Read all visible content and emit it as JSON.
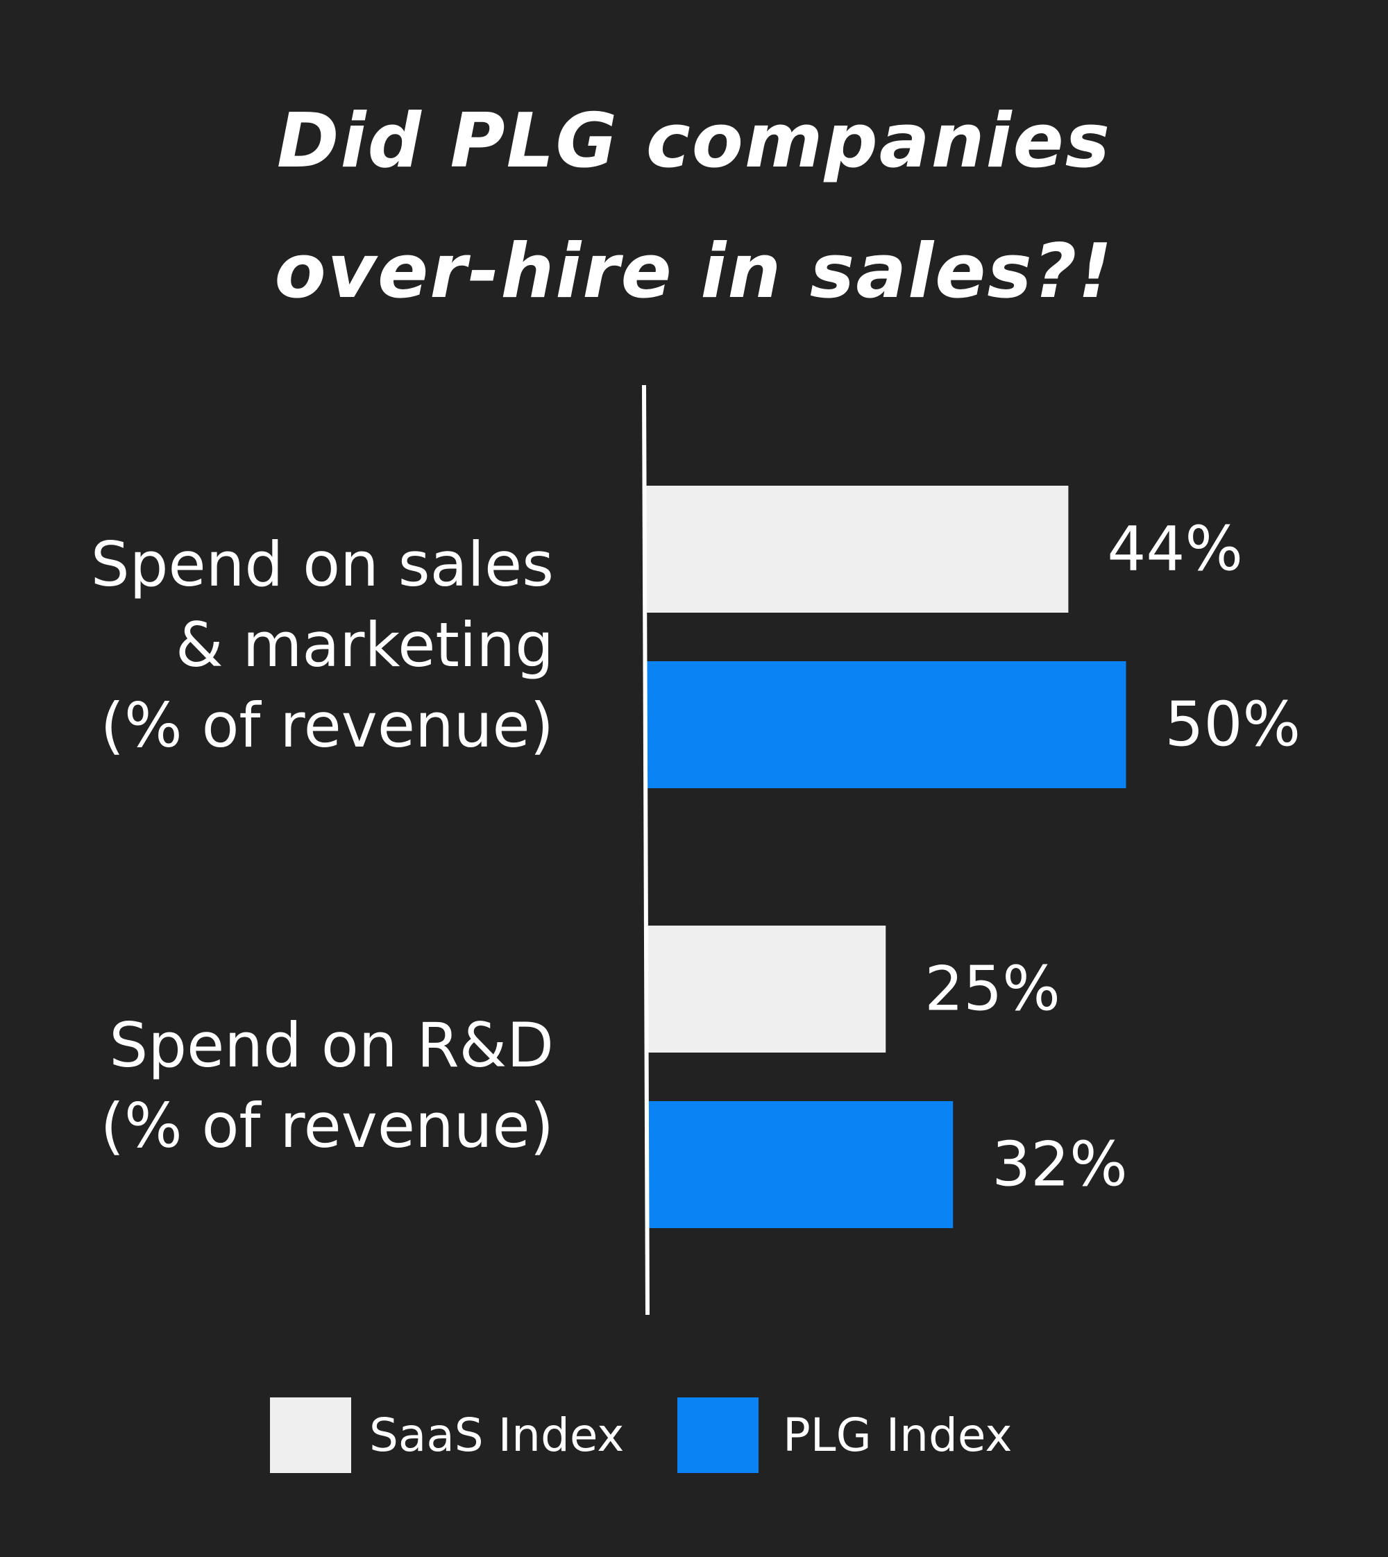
{
  "chart_data": {
    "type": "bar",
    "orientation": "horizontal",
    "title": [
      "Did PLG companies",
      "over-hire in sales?!"
    ],
    "categories": [
      [
        "Spend on sales",
        "& marketing",
        "(% of revenue)"
      ],
      [
        "Spend on R&D",
        "(% of revenue)"
      ]
    ],
    "series": [
      {
        "name": "SaaS Index",
        "values": [
          44,
          25
        ],
        "labels": [
          "44%",
          "25%"
        ]
      },
      {
        "name": "PLG Index",
        "values": [
          50,
          32
        ],
        "labels": [
          "50%",
          "32%"
        ]
      }
    ],
    "xlim": [
      0,
      60
    ],
    "grid": false,
    "legend_position": "bottom"
  },
  "colors": {
    "background": "#222223",
    "saas": "#efefef",
    "plg": "#0a84f5",
    "text": "#ffffff",
    "axis": "#ffffff"
  }
}
